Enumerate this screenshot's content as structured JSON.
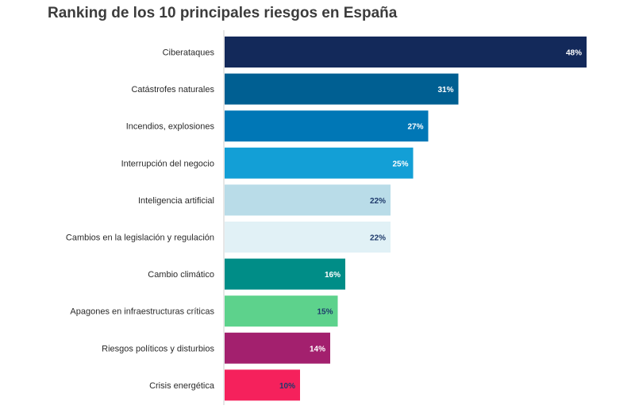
{
  "chart_data": {
    "type": "bar",
    "orientation": "horizontal",
    "title": "Ranking de los 10 principales riesgos en España",
    "categories": [
      "Ciberataques",
      "Catástrofes naturales",
      "Incendios, explosiones",
      "Interrupción del negocio",
      "Inteligencia artificial",
      "Cambios en la legislación y regulación",
      "Cambio climático",
      "Apagones en infraestructuras críticas",
      "Riesgos políticos y disturbios",
      "Crisis energética"
    ],
    "values": [
      48,
      31,
      27,
      25,
      22,
      22,
      16,
      15,
      14,
      10
    ],
    "value_labels": [
      "48%",
      "31%",
      "27%",
      "25%",
      "22%",
      "22%",
      "16%",
      "15%",
      "14%",
      "10%"
    ],
    "bar_colors": [
      "#13295a",
      "#005f92",
      "#0077b6",
      "#139fd6",
      "#b9dce8",
      "#e1f1f6",
      "#008d87",
      "#5dd28c",
      "#a3206e",
      "#f5215c"
    ],
    "label_colors": [
      "#ffffff",
      "#ffffff",
      "#ffffff",
      "#ffffff",
      "#1e3a6b",
      "#1e3a6b",
      "#ffffff",
      "#1e3a6b",
      "#ffffff",
      "#1e3a6b"
    ],
    "xlim": [
      0,
      48
    ],
    "grid": false,
    "legend": "none"
  }
}
